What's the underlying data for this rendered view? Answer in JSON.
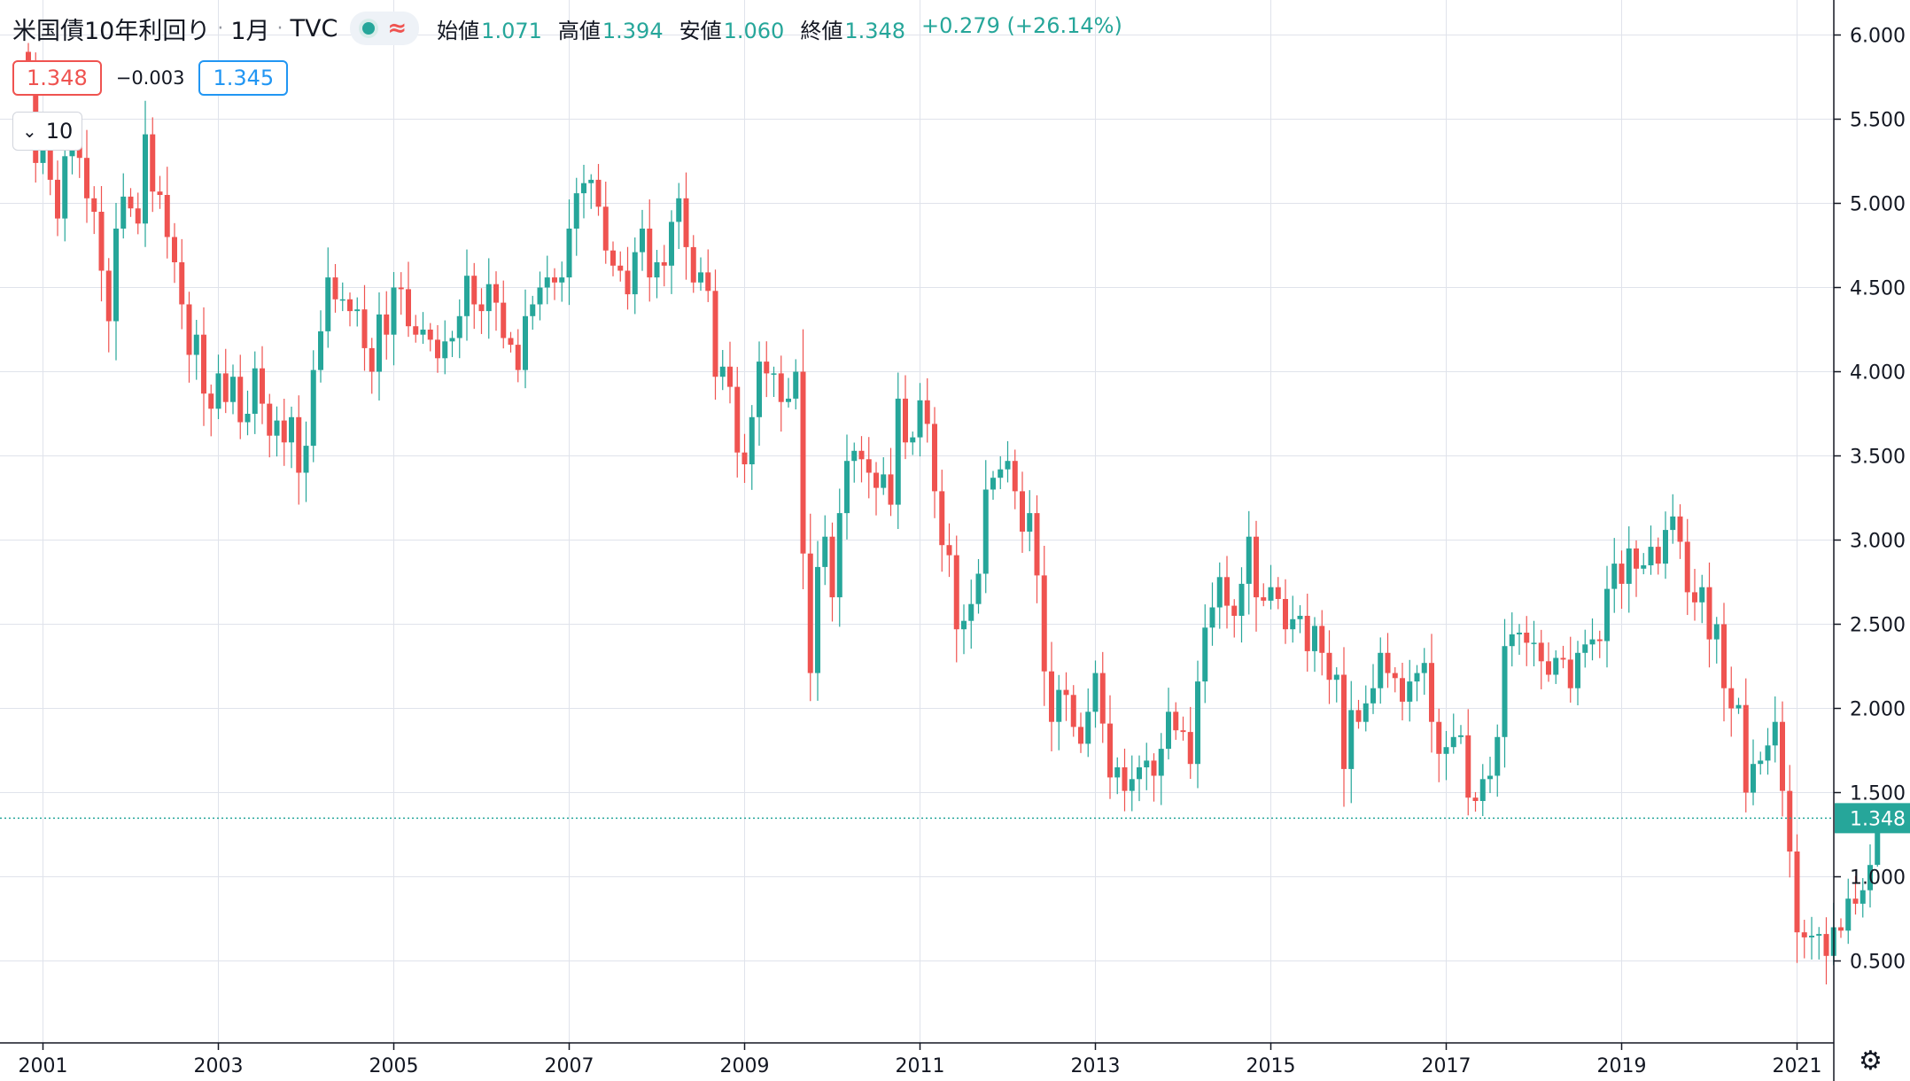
{
  "header": {
    "symbol": "米国債10年利回り",
    "interval": "1月",
    "source": "TVC",
    "indicator_icons": [
      "status-dot-icon",
      "approx-wave-icon"
    ],
    "ohlc": {
      "open_label": "始値",
      "open": "1.071",
      "high_label": "高値",
      "high": "1.394",
      "low_label": "安値",
      "low": "1.060",
      "close_label": "終値",
      "close": "1.348",
      "change": "+0.279 (+26.14%)"
    },
    "sell_price": "1.348",
    "spread": "−0.003",
    "buy_price": "1.345",
    "indicators_toggle": "10"
  },
  "colors": {
    "up": "#26a69a",
    "down": "#ef5350",
    "last_price_line": "#26a69a",
    "grid": "#e0e3eb"
  },
  "chart_data": {
    "type": "candlestick",
    "title": "",
    "xlabel": "",
    "ylabel": "",
    "x_ticks": [
      "2001",
      "2003",
      "2005",
      "2007",
      "2009",
      "2011",
      "2013",
      "2015",
      "2017",
      "2019",
      "2021"
    ],
    "y_ticks": [
      "0.500",
      "1.000",
      "1.500",
      "2.000",
      "2.500",
      "3.000",
      "3.500",
      "4.000",
      "4.500",
      "5.000",
      "5.500",
      "6.000"
    ],
    "ylim": [
      0.18,
      6.1
    ],
    "last_price": "1.348",
    "grid": true,
    "x_start": "2000-11",
    "note_keys": [
      "monthly closes approximated from the chart"
    ],
    "closes": [
      5.75,
      5.24,
      5.35,
      5.14,
      4.91,
      5.28,
      5.4,
      5.27,
      5.03,
      4.95,
      4.6,
      4.3,
      4.85,
      5.04,
      4.97,
      4.88,
      5.41,
      5.07,
      5.05,
      4.8,
      4.65,
      4.4,
      4.1,
      4.22,
      3.87,
      3.78,
      3.99,
      3.82,
      3.97,
      3.7,
      3.75,
      4.02,
      3.81,
      3.62,
      3.71,
      3.58,
      3.73,
      3.4,
      3.56,
      4.01,
      4.24,
      4.56,
      4.43,
      4.43,
      4.36,
      4.37,
      4.14,
      4.0,
      4.34,
      4.22,
      4.5,
      4.49,
      4.27,
      4.22,
      4.25,
      4.19,
      4.08,
      4.18,
      4.2,
      4.33,
      4.57,
      4.4,
      4.36,
      4.52,
      4.41,
      4.2,
      4.16,
      4.01,
      4.33,
      4.4,
      4.5,
      4.56,
      4.53,
      4.56,
      4.85,
      5.06,
      5.12,
      5.14,
      4.98,
      4.72,
      4.63,
      4.6,
      4.46,
      4.71,
      4.85,
      4.56,
      4.65,
      4.63,
      4.89,
      5.03,
      4.74,
      4.53,
      4.59,
      4.48,
      3.97,
      4.03,
      3.91,
      3.52,
      3.45,
      3.73,
      4.06,
      3.99,
      3.99,
      3.82,
      3.84,
      4.0,
      2.92,
      2.21,
      2.84,
      3.02,
      2.66,
      3.16,
      3.47,
      3.53,
      3.48,
      3.4,
      3.31,
      3.39,
      3.21,
      3.84,
      3.58,
      3.61,
      3.83,
      3.69,
      3.29,
      2.97,
      2.91,
      2.47,
      2.52,
      2.62,
      2.8,
      3.3,
      3.37,
      3.42,
      3.47,
      3.29,
      3.05,
      3.16,
      2.79,
      2.22,
      1.92,
      2.11,
      2.08,
      1.89,
      1.79,
      1.98,
      2.21,
      1.91,
      1.59,
      1.65,
      1.51,
      1.58,
      1.65,
      1.69,
      1.6,
      1.76,
      1.98,
      1.87,
      1.86,
      1.67,
      2.16,
      2.48,
      2.6,
      2.78,
      2.61,
      2.55,
      2.74,
      3.02,
      2.66,
      2.64,
      2.72,
      2.65,
      2.47,
      2.53,
      2.55,
      2.34,
      2.49,
      2.33,
      2.17,
      2.2,
      1.64,
      1.99,
      1.92,
      2.03,
      2.12,
      2.33,
      2.21,
      2.18,
      2.04,
      2.16,
      2.21,
      2.27,
      1.92,
      1.73,
      1.77,
      1.83,
      1.84,
      1.47,
      1.45,
      1.58,
      1.6,
      1.83,
      2.37,
      2.44,
      2.45,
      2.39,
      2.39,
      2.28,
      2.2,
      2.3,
      2.29,
      2.12,
      2.33,
      2.38,
      2.41,
      2.4,
      2.71,
      2.86,
      2.74,
      2.95,
      2.83,
      2.85,
      2.96,
      2.86,
      3.06,
      3.14,
      2.99,
      2.69,
      2.63,
      2.72,
      2.41,
      2.5,
      2.12,
      2.0,
      2.02,
      1.5,
      1.67,
      1.69,
      1.78,
      1.92,
      1.51,
      1.15,
      0.67,
      0.64,
      0.65,
      0.66,
      0.53,
      0.7,
      0.68,
      0.87,
      0.84,
      0.92,
      1.07,
      1.348
    ],
    "ohlc_shown": {
      "open": 1.071,
      "high": 1.394,
      "low": 1.06,
      "close": 1.348
    }
  }
}
